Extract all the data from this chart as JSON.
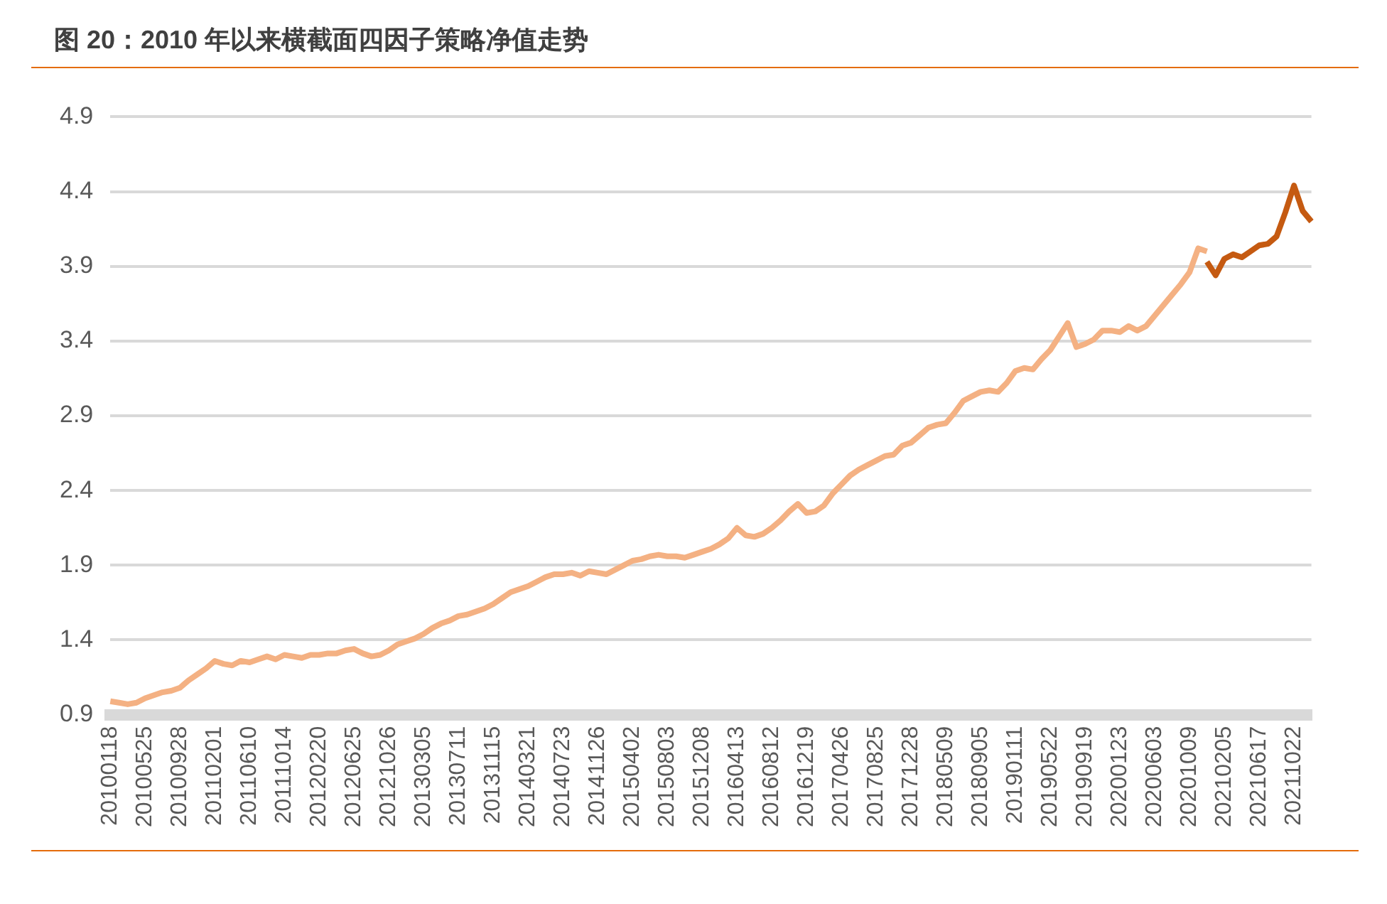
{
  "chart_data": {
    "type": "line",
    "title": "图 20：2010 年以来横截面四因子策略净值走势",
    "categories": [
      "20100118",
      null,
      null,
      null,
      "20100525",
      null,
      null,
      null,
      "20100928",
      null,
      null,
      null,
      "20110201",
      null,
      null,
      null,
      "20110610",
      null,
      null,
      null,
      "20111014",
      null,
      null,
      null,
      "20120220",
      null,
      null,
      null,
      "20120625",
      null,
      null,
      null,
      "20121026",
      null,
      null,
      null,
      "20130305",
      null,
      null,
      null,
      "20130711",
      null,
      null,
      null,
      "20131115",
      null,
      null,
      null,
      "20140321",
      null,
      null,
      null,
      "20140723",
      null,
      null,
      null,
      "20141126",
      null,
      null,
      null,
      "20150402",
      null,
      null,
      null,
      "20150803",
      null,
      null,
      null,
      "20151208",
      null,
      null,
      null,
      "20160413",
      null,
      null,
      null,
      "20160812",
      null,
      null,
      null,
      "20161219",
      null,
      null,
      null,
      "20170426",
      null,
      null,
      null,
      "20170825",
      null,
      null,
      null,
      "20171228",
      null,
      null,
      null,
      "20180509",
      null,
      null,
      null,
      "20180905",
      null,
      null,
      null,
      "20190111",
      null,
      null,
      null,
      "20190522",
      null,
      null,
      null,
      "20190919",
      null,
      null,
      null,
      "20200123",
      null,
      null,
      null,
      "20200603",
      null,
      null,
      null,
      "20201009",
      null,
      null,
      null,
      "20210205",
      null,
      null,
      null,
      "20210617",
      null,
      null,
      null,
      "20211022",
      null,
      null
    ],
    "series": [
      {
        "color": "#f4b183",
        "values": [
          0.99,
          0.98,
          0.97,
          0.98,
          1.01,
          1.03,
          1.05,
          1.06,
          1.08,
          1.13,
          1.17,
          1.21,
          1.26,
          1.24,
          1.23,
          1.26,
          1.25,
          1.27,
          1.29,
          1.27,
          1.3,
          1.29,
          1.28,
          1.3,
          1.3,
          1.31,
          1.31,
          1.33,
          1.34,
          1.31,
          1.29,
          1.3,
          1.33,
          1.37,
          1.39,
          1.41,
          1.44,
          1.48,
          1.51,
          1.53,
          1.56,
          1.57,
          1.59,
          1.61,
          1.64,
          1.68,
          1.72,
          1.74,
          1.76,
          1.79,
          1.82,
          1.84,
          1.84,
          1.85,
          1.83,
          1.86,
          1.85,
          1.84,
          1.87,
          1.9,
          1.93,
          1.94,
          1.96,
          1.97,
          1.96,
          1.96,
          1.95,
          1.97,
          1.99,
          2.01,
          2.04,
          2.08,
          2.15,
          2.1,
          2.09,
          2.11,
          2.15,
          2.2,
          2.26,
          2.31,
          2.25,
          2.26,
          2.3,
          2.38,
          2.44,
          2.5,
          2.54,
          2.57,
          2.6,
          2.63,
          2.64,
          2.7,
          2.72,
          2.77,
          2.82,
          2.84,
          2.85,
          2.92,
          3.0,
          3.03,
          3.06,
          3.07,
          3.06,
          3.12,
          3.2,
          3.22,
          3.21,
          3.28,
          3.34,
          3.43,
          3.52,
          3.36,
          3.38,
          3.41,
          3.47,
          3.47,
          3.46,
          3.5,
          3.47,
          3.5,
          3.57,
          3.64,
          3.71,
          3.78,
          3.86,
          4.02,
          4.0,
          null,
          null,
          null,
          null,
          null,
          null,
          null,
          null,
          null,
          null,
          null,
          null
        ]
      },
      {
        "color": "#c55a11",
        "values": [
          null,
          null,
          null,
          null,
          null,
          null,
          null,
          null,
          null,
          null,
          null,
          null,
          null,
          null,
          null,
          null,
          null,
          null,
          null,
          null,
          null,
          null,
          null,
          null,
          null,
          null,
          null,
          null,
          null,
          null,
          null,
          null,
          null,
          null,
          null,
          null,
          null,
          null,
          null,
          null,
          null,
          null,
          null,
          null,
          null,
          null,
          null,
          null,
          null,
          null,
          null,
          null,
          null,
          null,
          null,
          null,
          null,
          null,
          null,
          null,
          null,
          null,
          null,
          null,
          null,
          null,
          null,
          null,
          null,
          null,
          null,
          null,
          null,
          null,
          null,
          null,
          null,
          null,
          null,
          null,
          null,
          null,
          null,
          null,
          null,
          null,
          null,
          null,
          null,
          null,
          null,
          null,
          null,
          null,
          null,
          null,
          null,
          null,
          null,
          null,
          null,
          null,
          null,
          null,
          null,
          null,
          null,
          null,
          null,
          null,
          null,
          null,
          null,
          null,
          null,
          null,
          null,
          null,
          null,
          null,
          null,
          null,
          null,
          null,
          null,
          null,
          3.93,
          3.84,
          3.95,
          3.98,
          3.96,
          4.0,
          4.04,
          4.05,
          4.1,
          4.26,
          4.44,
          4.27,
          4.2
        ]
      }
    ],
    "ylim": [
      0.9,
      4.9
    ],
    "yticks": [
      0.9,
      1.4,
      1.9,
      2.4,
      2.9,
      3.4,
      3.9,
      4.4,
      4.9
    ],
    "grid": "y"
  }
}
